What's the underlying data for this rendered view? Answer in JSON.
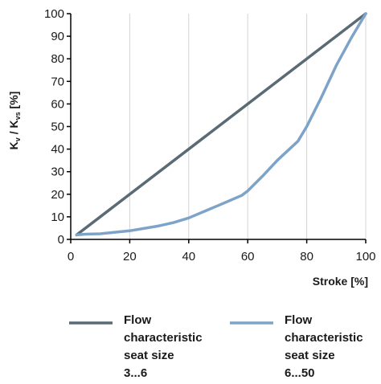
{
  "chart_data": {
    "type": "line",
    "title": "",
    "xlabel": "Stroke [%]",
    "ylabel": {
      "k1": "K",
      "sub1": "v",
      "slash": " / ",
      "k2": "K",
      "sub2": "vs",
      "unit": "  [%]"
    },
    "xlim": [
      0,
      100
    ],
    "ylim": [
      0,
      100
    ],
    "x_ticks": [
      0,
      20,
      40,
      60,
      80,
      100
    ],
    "y_ticks": [
      0,
      10,
      20,
      30,
      40,
      50,
      60,
      70,
      80,
      90,
      100
    ],
    "grid": true,
    "legend_position": "bottom",
    "series": [
      {
        "name": [
          "Flow",
          "characteristic",
          "seat size",
          "3...6"
        ],
        "color": "#5a6b75",
        "x": [
          2,
          100
        ],
        "y": [
          2,
          100
        ]
      },
      {
        "name": [
          "Flow",
          "characteristic",
          "seat size",
          "6...50"
        ],
        "color": "#7ea3c9",
        "x": [
          2,
          5,
          10,
          20,
          30,
          35,
          40,
          50,
          58,
          60,
          65,
          70,
          77,
          80,
          85,
          90,
          95,
          100
        ],
        "y": [
          2,
          2.3,
          2.5,
          3.8,
          6,
          7.5,
          9.5,
          15,
          19.5,
          21.5,
          28,
          35,
          43.5,
          50,
          63,
          77,
          89,
          100
        ]
      }
    ]
  }
}
